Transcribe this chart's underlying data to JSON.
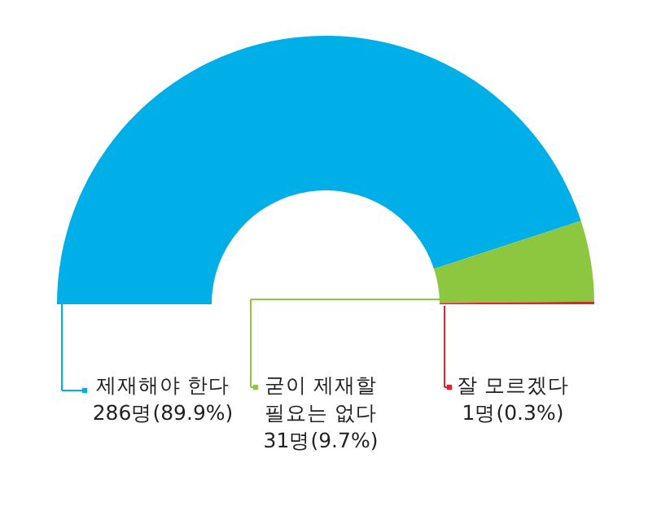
{
  "chart_data": {
    "type": "donut",
    "categories": [
      "제재해야 한다",
      "굳이 제재할\n필요는 없다",
      "잘 모르겠다"
    ],
    "values": [
      286,
      31,
      1
    ],
    "colors": [
      "#00aee8",
      "#8dc63f",
      "#e8202a"
    ],
    "legend": "bottom",
    "value_labels": [
      "286명(89.9%)",
      "31명(9.7%)",
      "1명(0.3%)"
    ]
  }
}
